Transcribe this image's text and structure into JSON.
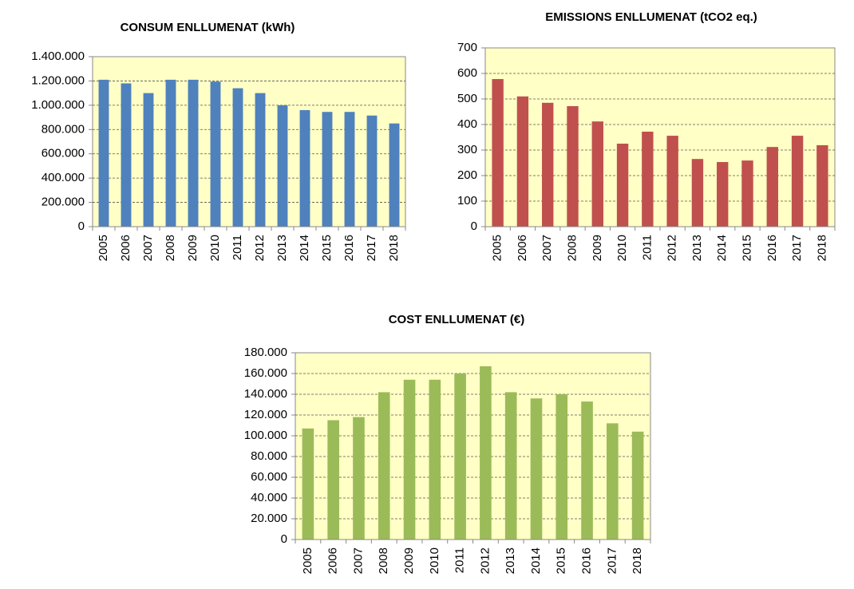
{
  "chart_data": [
    {
      "type": "bar",
      "title": "CONSUM ENLLUMENAT (kWh)",
      "categories": [
        "2005",
        "2006",
        "2007",
        "2008",
        "2009",
        "2010",
        "2011",
        "2012",
        "2013",
        "2014",
        "2015",
        "2016",
        "2017",
        "2018"
      ],
      "values": [
        1210000,
        1180000,
        1100000,
        1210000,
        1210000,
        1195000,
        1140000,
        1100000,
        1000000,
        960000,
        945000,
        945000,
        915000,
        850000
      ],
      "color": "#4f81bd",
      "ylim": [
        0,
        1400000
      ],
      "yticks": [
        0,
        {
          "value": 200000,
          "label": "200.000"
        },
        {
          "value": 400000,
          "label": "400.000"
        },
        {
          "value": 600000,
          "label": "600.000"
        },
        {
          "value": 800000,
          "label": "800.000"
        },
        {
          "value": 1000000,
          "label": "1.000.000"
        },
        {
          "value": 1200000,
          "label": "1.200.000"
        },
        {
          "value": 1400000,
          "label": "1.400.000"
        }
      ],
      "grid": true
    },
    {
      "type": "bar",
      "title": "EMISSIONS ENLLUMENAT (tCO2 eq.)",
      "categories": [
        "2005",
        "2006",
        "2007",
        "2008",
        "2009",
        "2010",
        "2011",
        "2012",
        "2013",
        "2014",
        "2015",
        "2016",
        "2017",
        "2018"
      ],
      "values": [
        578,
        510,
        485,
        472,
        412,
        325,
        372,
        356,
        265,
        253,
        259,
        312,
        356,
        319
      ],
      "color": "#c0504d",
      "ylim": [
        0,
        700
      ],
      "yticks": [
        0,
        100,
        200,
        300,
        400,
        500,
        600,
        700
      ],
      "grid": true
    },
    {
      "type": "bar",
      "title": "COST ENLLUMENAT (€)",
      "categories": [
        "2005",
        "2006",
        "2007",
        "2008",
        "2009",
        "2010",
        "2011",
        "2012",
        "2013",
        "2014",
        "2015",
        "2016",
        "2017",
        "2018"
      ],
      "values": [
        107000,
        115000,
        118000,
        142000,
        154000,
        154000,
        160000,
        167000,
        142000,
        136000,
        140000,
        133000,
        112000,
        104000
      ],
      "color": "#9bbb59",
      "ylim": [
        0,
        180000
      ],
      "yticks": [
        0,
        {
          "value": 20000,
          "label": "20.000"
        },
        {
          "value": 40000,
          "label": "40.000"
        },
        {
          "value": 60000,
          "label": "60.000"
        },
        {
          "value": 80000,
          "label": "80.000"
        },
        {
          "value": 100000,
          "label": "100.000"
        },
        {
          "value": 120000,
          "label": "120.000"
        },
        {
          "value": 140000,
          "label": "140.000"
        },
        {
          "value": 160000,
          "label": "160.000"
        },
        {
          "value": 180000,
          "label": "180.000"
        }
      ],
      "grid": true
    }
  ]
}
